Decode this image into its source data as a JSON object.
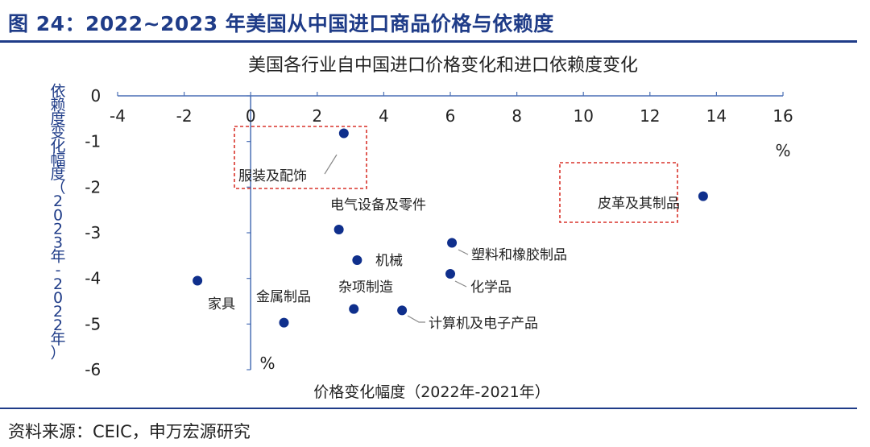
{
  "figure": {
    "title": "图 24：2022~2023 年美国从中国进口商品价格与依赖度",
    "source": "资料来源：CEIC，申万宏源研究"
  },
  "chart_data": {
    "type": "scatter",
    "title": "美国各行业自中国进口价格变化和进口依赖度变化",
    "xlabel": "价格变化幅度（2022年-2021年）",
    "ylabel": "依赖度变化幅度（2023年-2022年）",
    "x_unit": "%",
    "y_unit": "%",
    "xlim": [
      -4,
      16
    ],
    "ylim": [
      -6,
      0
    ],
    "xticks": [
      "-4",
      "-2",
      "0",
      "2",
      "4",
      "6",
      "8",
      "10",
      "12",
      "14",
      "16"
    ],
    "yticks": [
      "0",
      "-1",
      "-2",
      "-3",
      "-4",
      "-5",
      "-6"
    ],
    "points": [
      {
        "label": "服装及配饰",
        "x": 2.8,
        "y": -0.82
      },
      {
        "label": "皮革及其制品",
        "x": 13.6,
        "y": -2.2
      },
      {
        "label": "电气设备及零件",
        "x": 2.65,
        "y": -2.93
      },
      {
        "label": "塑料和橡胶制品",
        "x": 6.05,
        "y": -3.22
      },
      {
        "label": "机械",
        "x": 3.2,
        "y": -3.6
      },
      {
        "label": "化学品",
        "x": 6.0,
        "y": -3.9
      },
      {
        "label": "家具",
        "x": -1.6,
        "y": -4.05
      },
      {
        "label": "金属制品",
        "x": 1.0,
        "y": -4.97
      },
      {
        "label": "杂项制造",
        "x": 3.1,
        "y": -4.67
      },
      {
        "label": "计算机及电子产品",
        "x": 4.55,
        "y": -4.7
      }
    ],
    "highlight_boxes": [
      "服装及配饰",
      "皮革及其制品"
    ],
    "colors": {
      "marker": "#0f2f8c",
      "axis": "#4a6fb5",
      "box": "#d9342b",
      "title": "#1f3c88"
    }
  }
}
